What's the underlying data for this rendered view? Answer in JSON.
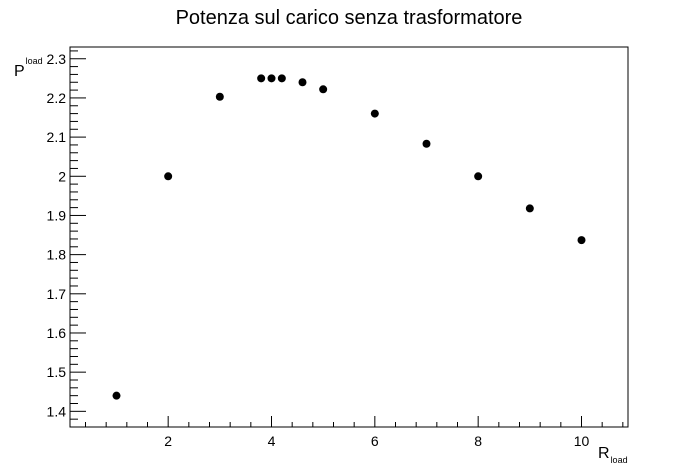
{
  "chart_data": {
    "type": "scatter",
    "title": "Potenza sul carico senza trasformatore",
    "xlabel": {
      "main": "R",
      "sub": "load"
    },
    "ylabel": {
      "main": "P",
      "sub": "load"
    },
    "xlim": [
      0.1,
      10.9
    ],
    "ylim": [
      1.36,
      2.33
    ],
    "x_ticks": [
      2,
      4,
      6,
      8,
      10
    ],
    "y_ticks": [
      1.4,
      1.5,
      1.6,
      1.7,
      1.8,
      1.9,
      2,
      2.1,
      2.2,
      2.3
    ],
    "grid": false,
    "marker_color": "#000000",
    "points": [
      {
        "x": 1,
        "y": 1.44
      },
      {
        "x": 2,
        "y": 2.0
      },
      {
        "x": 3,
        "y": 2.203
      },
      {
        "x": 3.8,
        "y": 2.25
      },
      {
        "x": 4,
        "y": 2.25
      },
      {
        "x": 4.2,
        "y": 2.25
      },
      {
        "x": 4.6,
        "y": 2.24
      },
      {
        "x": 5,
        "y": 2.222
      },
      {
        "x": 6,
        "y": 2.16
      },
      {
        "x": 7,
        "y": 2.083
      },
      {
        "x": 8,
        "y": 2.0
      },
      {
        "x": 9,
        "y": 1.918
      },
      {
        "x": 10,
        "y": 1.837
      }
    ]
  }
}
